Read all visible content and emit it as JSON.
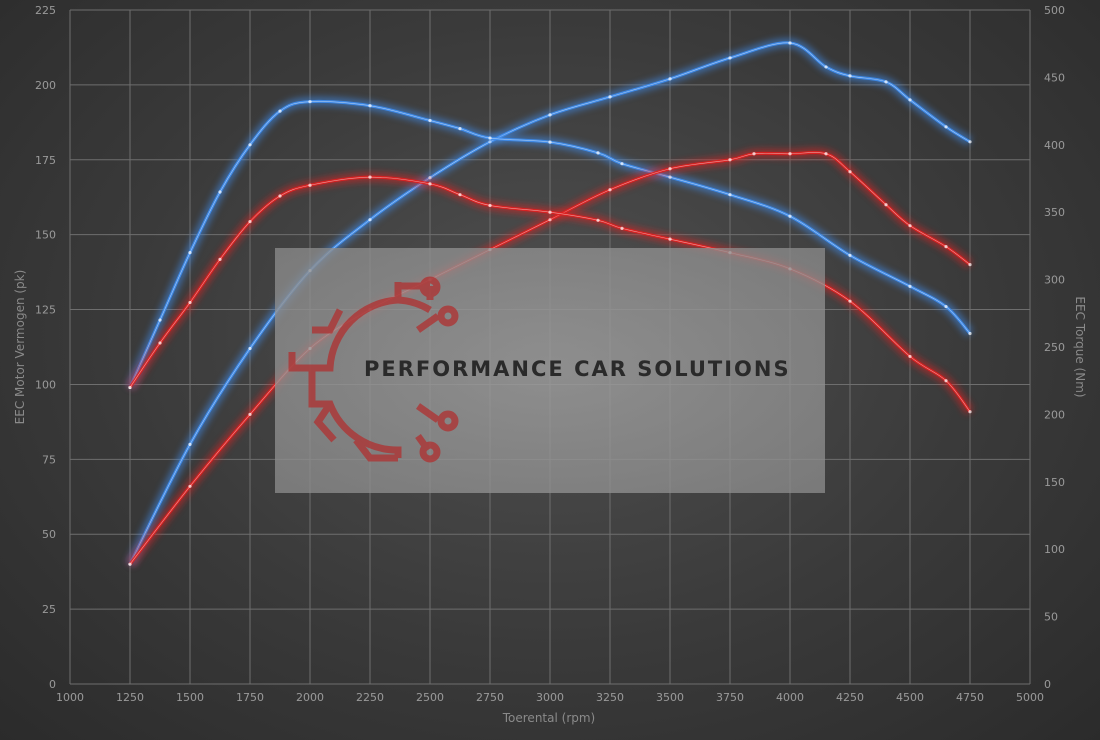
{
  "chart_data": {
    "type": "line",
    "title": "",
    "xlabel": "Toerental (rpm)",
    "ylabel_left": "EEC Motor Vermogen (pk)",
    "ylabel_right": "EEC Torque (Nm)",
    "xlim": [
      1000,
      5000
    ],
    "ylim_left": [
      0,
      225
    ],
    "ylim_right": [
      0,
      500
    ],
    "x_ticks": [
      1000,
      1250,
      1500,
      1750,
      2000,
      2250,
      2500,
      2750,
      3000,
      3250,
      3500,
      3750,
      4000,
      4250,
      4500,
      4750,
      5000
    ],
    "y_ticks_left": [
      0,
      25,
      50,
      75,
      100,
      125,
      150,
      175,
      200,
      225
    ],
    "y_ticks_right": [
      0,
      50,
      100,
      150,
      200,
      250,
      300,
      350,
      400,
      450,
      500
    ],
    "grid": true,
    "series": [
      {
        "axis": "left",
        "color": "#3f8ef0",
        "x": [
          1250,
          1500,
          1750,
          2000,
          2250,
          2500,
          2750,
          3000,
          3250,
          3500,
          3750,
          4000,
          4150,
          4250,
          4400,
          4500,
          4650,
          4750
        ],
        "values": [
          40,
          80,
          112,
          138,
          155,
          169,
          181,
          190,
          196,
          202,
          209,
          214,
          206,
          203,
          201,
          195,
          186,
          181
        ]
      },
      {
        "axis": "right",
        "color": "#3f8ef0",
        "x": [
          1250,
          1375,
          1500,
          1625,
          1750,
          1875,
          2000,
          2250,
          2500,
          2625,
          2750,
          3000,
          3200,
          3300,
          3500,
          3750,
          4000,
          4250,
          4500,
          4650,
          4750
        ],
        "values": [
          220,
          270,
          320,
          365,
          400,
          425,
          432,
          429,
          418,
          412,
          405,
          402,
          394,
          386,
          376,
          363,
          347,
          318,
          295,
          280,
          260
        ]
      },
      {
        "axis": "left",
        "color": "#e02020",
        "x": [
          1250,
          1500,
          1750,
          2000,
          2250,
          2500,
          2750,
          3000,
          3250,
          3500,
          3750,
          3850,
          4000,
          4150,
          4250,
          4400,
          4500,
          4650,
          4750
        ],
        "values": [
          40,
          66,
          90,
          112,
          125,
          135,
          145,
          155,
          165,
          172,
          175,
          177,
          177,
          177,
          171,
          160,
          153,
          146,
          140
        ]
      },
      {
        "axis": "right",
        "color": "#e02020",
        "x": [
          1250,
          1375,
          1500,
          1625,
          1750,
          1875,
          2000,
          2250,
          2500,
          2625,
          2750,
          3000,
          3200,
          3300,
          3500,
          3750,
          4000,
          4250,
          4500,
          4650,
          4750
        ],
        "values": [
          220,
          253,
          283,
          315,
          343,
          362,
          370,
          376,
          371,
          363,
          355,
          350,
          344,
          338,
          330,
          320,
          308,
          284,
          243,
          225,
          202
        ]
      }
    ]
  },
  "watermark": {
    "text": "PERFORMANCE CAR SOLUTIONS"
  }
}
